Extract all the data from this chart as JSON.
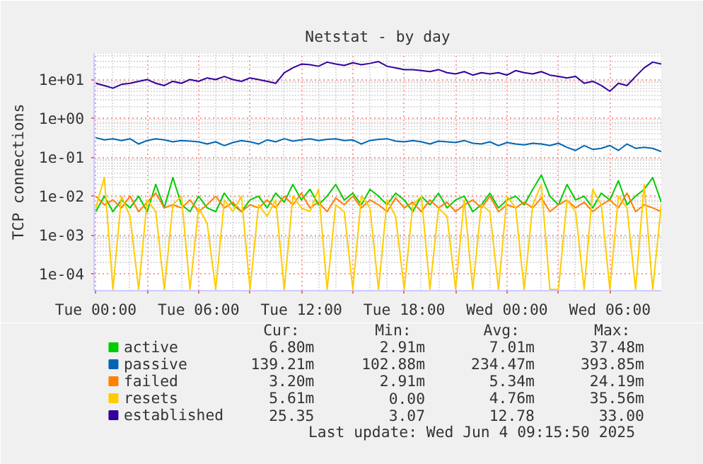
{
  "chart_data": {
    "type": "line",
    "title": "Netstat - by day",
    "ylabel": "TCP connections",
    "log": "y",
    "grid": true,
    "legend": "bottom",
    "line_style": "solid",
    "marker": "none",
    "xlim": [
      "2025-06-02T23:54",
      "2025-06-04T09:00"
    ],
    "ylim": [
      3.7e-05,
      48
    ],
    "xticks": [
      {
        "value": "2025-06-03T00:00",
        "label": "Tue 00:00"
      },
      {
        "value": "2025-06-03T03:00",
        "label": null
      },
      {
        "value": "2025-06-03T06:00",
        "label": "Tue 06:00"
      },
      {
        "value": "2025-06-03T09:00",
        "label": null
      },
      {
        "value": "2025-06-03T12:00",
        "label": "Tue 12:00"
      },
      {
        "value": "2025-06-03T15:00",
        "label": null
      },
      {
        "value": "2025-06-03T18:00",
        "label": "Tue 18:00"
      },
      {
        "value": "2025-06-03T21:00",
        "label": null
      },
      {
        "value": "2025-06-04T00:00",
        "label": "Wed 00:00"
      },
      {
        "value": "2025-06-04T03:00",
        "label": null
      },
      {
        "value": "2025-06-04T06:00",
        "label": "Wed 06:00"
      }
    ],
    "yticks": [
      {
        "value": 0.0001,
        "label": "1e-04"
      },
      {
        "value": 0.001,
        "label": "1e-03"
      },
      {
        "value": 0.01,
        "label": "1e-02"
      },
      {
        "value": 0.1,
        "label": "1e-01"
      },
      {
        "value": 1,
        "label": "1e+00"
      },
      {
        "value": 10,
        "label": "1e+01"
      }
    ],
    "x": [
      "2025-06-03T00:00",
      "2025-06-03T00:30",
      "2025-06-03T01:00",
      "2025-06-03T01:30",
      "2025-06-03T02:00",
      "2025-06-03T02:30",
      "2025-06-03T03:00",
      "2025-06-03T03:30",
      "2025-06-03T04:00",
      "2025-06-03T04:30",
      "2025-06-03T05:00",
      "2025-06-03T05:30",
      "2025-06-03T06:00",
      "2025-06-03T06:30",
      "2025-06-03T07:00",
      "2025-06-03T07:30",
      "2025-06-03T08:00",
      "2025-06-03T08:30",
      "2025-06-03T09:00",
      "2025-06-03T09:30",
      "2025-06-03T10:00",
      "2025-06-03T10:30",
      "2025-06-03T11:00",
      "2025-06-03T11:30",
      "2025-06-03T12:00",
      "2025-06-03T12:30",
      "2025-06-03T13:00",
      "2025-06-03T13:30",
      "2025-06-03T14:00",
      "2025-06-03T14:30",
      "2025-06-03T15:00",
      "2025-06-03T15:30",
      "2025-06-03T16:00",
      "2025-06-03T16:30",
      "2025-06-03T17:00",
      "2025-06-03T17:30",
      "2025-06-03T18:00",
      "2025-06-03T18:30",
      "2025-06-03T19:00",
      "2025-06-03T19:30",
      "2025-06-03T20:00",
      "2025-06-03T20:30",
      "2025-06-03T21:00",
      "2025-06-03T21:30",
      "2025-06-03T22:00",
      "2025-06-03T22:30",
      "2025-06-03T23:00",
      "2025-06-03T23:30",
      "2025-06-04T00:00",
      "2025-06-04T00:30",
      "2025-06-04T01:00",
      "2025-06-04T01:30",
      "2025-06-04T02:00",
      "2025-06-04T02:30",
      "2025-06-04T03:00",
      "2025-06-04T03:30",
      "2025-06-04T04:00",
      "2025-06-04T04:30",
      "2025-06-04T05:00",
      "2025-06-04T05:30",
      "2025-06-04T06:00",
      "2025-06-04T06:30",
      "2025-06-04T07:00",
      "2025-06-04T07:30",
      "2025-06-04T08:00",
      "2025-06-04T08:30",
      "2025-06-04T09:00"
    ],
    "series": [
      {
        "name": "active",
        "color": "#00cc00",
        "values": [
          0.004,
          0.01,
          0.004,
          0.008,
          0.005,
          0.01,
          0.004,
          0.02,
          0.005,
          0.03,
          0.006,
          0.004,
          0.01,
          0.005,
          0.004,
          0.012,
          0.006,
          0.004,
          0.008,
          0.01,
          0.005,
          0.012,
          0.007,
          0.02,
          0.008,
          0.015,
          0.006,
          0.01,
          0.02,
          0.008,
          0.012,
          0.006,
          0.015,
          0.01,
          0.006,
          0.012,
          0.008,
          0.004,
          0.01,
          0.006,
          0.012,
          0.005,
          0.008,
          0.01,
          0.004,
          0.006,
          0.012,
          0.005,
          0.008,
          0.01,
          0.006,
          0.015,
          0.035,
          0.01,
          0.006,
          0.02,
          0.008,
          0.01,
          0.005,
          0.012,
          0.008,
          0.025,
          0.006,
          0.01,
          0.015,
          0.03,
          0.007
        ]
      },
      {
        "name": "passive",
        "color": "#0066b3",
        "values": [
          0.32,
          0.28,
          0.3,
          0.27,
          0.3,
          0.22,
          0.27,
          0.3,
          0.28,
          0.25,
          0.27,
          0.26,
          0.25,
          0.22,
          0.25,
          0.2,
          0.24,
          0.27,
          0.25,
          0.22,
          0.28,
          0.25,
          0.3,
          0.26,
          0.28,
          0.3,
          0.27,
          0.29,
          0.3,
          0.27,
          0.28,
          0.22,
          0.27,
          0.29,
          0.3,
          0.26,
          0.25,
          0.27,
          0.25,
          0.22,
          0.26,
          0.25,
          0.24,
          0.27,
          0.23,
          0.22,
          0.25,
          0.2,
          0.24,
          0.22,
          0.21,
          0.23,
          0.22,
          0.2,
          0.23,
          0.18,
          0.15,
          0.2,
          0.16,
          0.17,
          0.2,
          0.15,
          0.22,
          0.17,
          0.18,
          0.17,
          0.14
        ]
      },
      {
        "name": "failed",
        "color": "#ff8000",
        "values": [
          0.01,
          0.006,
          0.008,
          0.005,
          0.01,
          0.004,
          0.007,
          0.012,
          0.005,
          0.006,
          0.005,
          0.008,
          0.004,
          0.006,
          0.01,
          0.005,
          0.007,
          0.004,
          0.006,
          0.005,
          0.008,
          0.005,
          0.01,
          0.006,
          0.012,
          0.005,
          0.007,
          0.004,
          0.009,
          0.006,
          0.01,
          0.005,
          0.008,
          0.006,
          0.004,
          0.009,
          0.005,
          0.007,
          0.004,
          0.008,
          0.005,
          0.007,
          0.004,
          0.006,
          0.008,
          0.005,
          0.01,
          0.004,
          0.006,
          0.005,
          0.007,
          0.005,
          0.009,
          0.004,
          0.006,
          0.008,
          0.005,
          0.007,
          0.004,
          0.006,
          0.008,
          0.005,
          0.012,
          0.004,
          0.006,
          0.005,
          0.004
        ]
      },
      {
        "name": "resets",
        "color": "#ffcc00",
        "values": [
          0.005,
          0.03,
          4e-05,
          0.01,
          0.003,
          4e-05,
          0.008,
          0.004,
          4e-05,
          0.006,
          0.01,
          4e-05,
          0.005,
          0.002,
          4e-05,
          0.008,
          0.004,
          0.01,
          4e-05,
          0.006,
          0.003,
          0.008,
          4e-05,
          0.01,
          0.005,
          0.004,
          0.015,
          4e-05,
          0.006,
          0.004,
          4e-05,
          0.01,
          0.005,
          4e-05,
          0.008,
          0.003,
          4e-05,
          0.006,
          0.01,
          4e-05,
          0.005,
          0.003,
          4e-05,
          0.008,
          4e-05,
          0.006,
          0.004,
          4e-05,
          0.01,
          0.005,
          4e-05,
          0.006,
          0.02,
          4e-05,
          4e-05,
          0.008,
          0.004,
          4e-05,
          0.015,
          0.006,
          4e-05,
          0.01,
          0.005,
          4e-05,
          0.02,
          4e-05,
          0.006
        ]
      },
      {
        "name": "established",
        "color": "#330099",
        "values": [
          8,
          7,
          6,
          7.5,
          8,
          9,
          10,
          8,
          7,
          9,
          8,
          10,
          9,
          11,
          10,
          12,
          10,
          9,
          11,
          10,
          9,
          8,
          15,
          20,
          25,
          24,
          22,
          28,
          25,
          23,
          27,
          24,
          26,
          29,
          22,
          20,
          18,
          18,
          17,
          16,
          18,
          15,
          14,
          16,
          13,
          15,
          14,
          15,
          13,
          17,
          15,
          14,
          16,
          13,
          12,
          11,
          12,
          8,
          9,
          7,
          5,
          8,
          7,
          12,
          20,
          28,
          25
        ]
      }
    ],
    "annotations": [
      "Cur:",
      "Min:",
      "Avg:",
      "Max:",
      "6.80m",
      "2.91m",
      "7.01m",
      "37.48m",
      "139.21m",
      "102.88m",
      "234.47m",
      "393.85m",
      "3.20m",
      "2.91m",
      "5.34m",
      "24.19m",
      "5.61m",
      "0.00",
      "4.76m",
      "35.56m",
      "25.35",
      "3.07",
      "12.78",
      "33.00",
      "Last update: Wed Jun  4 09:15:50 2025"
    ]
  }
}
